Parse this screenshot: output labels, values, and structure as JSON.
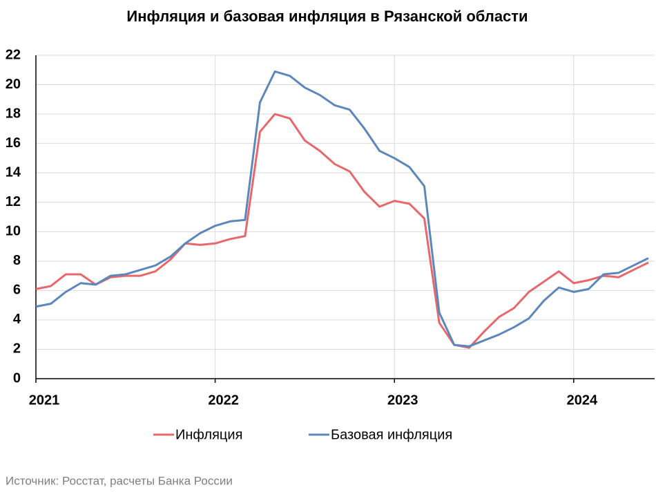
{
  "chart_data": {
    "type": "line",
    "title": "Инфляция и базовая инфляция в Рязанской области",
    "categories": [
      "2021",
      null,
      null,
      null,
      null,
      null,
      null,
      null,
      null,
      null,
      null,
      null,
      "2022",
      null,
      null,
      null,
      null,
      null,
      null,
      null,
      null,
      null,
      null,
      null,
      "2023",
      null,
      null,
      null,
      null,
      null,
      null,
      null,
      null,
      null,
      null,
      null,
      "2024",
      null,
      null,
      null,
      null,
      null
    ],
    "series": [
      {
        "name": "Инфляция",
        "color": "#e8676b",
        "values": [
          6.1,
          6.3,
          7.1,
          7.1,
          6.4,
          6.9,
          7.0,
          7.0,
          7.3,
          8.1,
          9.2,
          9.1,
          9.2,
          9.5,
          9.7,
          16.8,
          18.0,
          17.7,
          16.2,
          15.5,
          14.6,
          14.1,
          12.7,
          11.7,
          12.1,
          11.9,
          10.9,
          3.8,
          2.3,
          2.1,
          3.2,
          4.2,
          4.8,
          5.9,
          6.6,
          7.3,
          6.5,
          6.7,
          7.0,
          6.9,
          7.4,
          7.9
        ]
      },
      {
        "name": "Базовая инфляция",
        "color": "#5b87bd",
        "values": [
          4.9,
          5.1,
          5.9,
          6.5,
          6.4,
          7.0,
          7.1,
          7.4,
          7.7,
          8.3,
          9.2,
          9.9,
          10.4,
          10.7,
          10.8,
          18.8,
          20.9,
          20.6,
          19.8,
          19.3,
          18.6,
          18.3,
          17.0,
          15.5,
          15.0,
          14.4,
          13.1,
          4.5,
          2.3,
          2.2,
          2.6,
          3.0,
          3.5,
          4.1,
          5.3,
          6.2,
          5.9,
          6.1,
          7.1,
          7.2,
          7.7,
          8.2
        ]
      }
    ],
    "ylim": [
      0,
      22
    ],
    "yticks": [
      0,
      2,
      4,
      6,
      8,
      10,
      12,
      14,
      16,
      18,
      20,
      22
    ],
    "grid": true,
    "legend": "bottom",
    "source": "Источник: Росстат, расчеты Банка России"
  }
}
